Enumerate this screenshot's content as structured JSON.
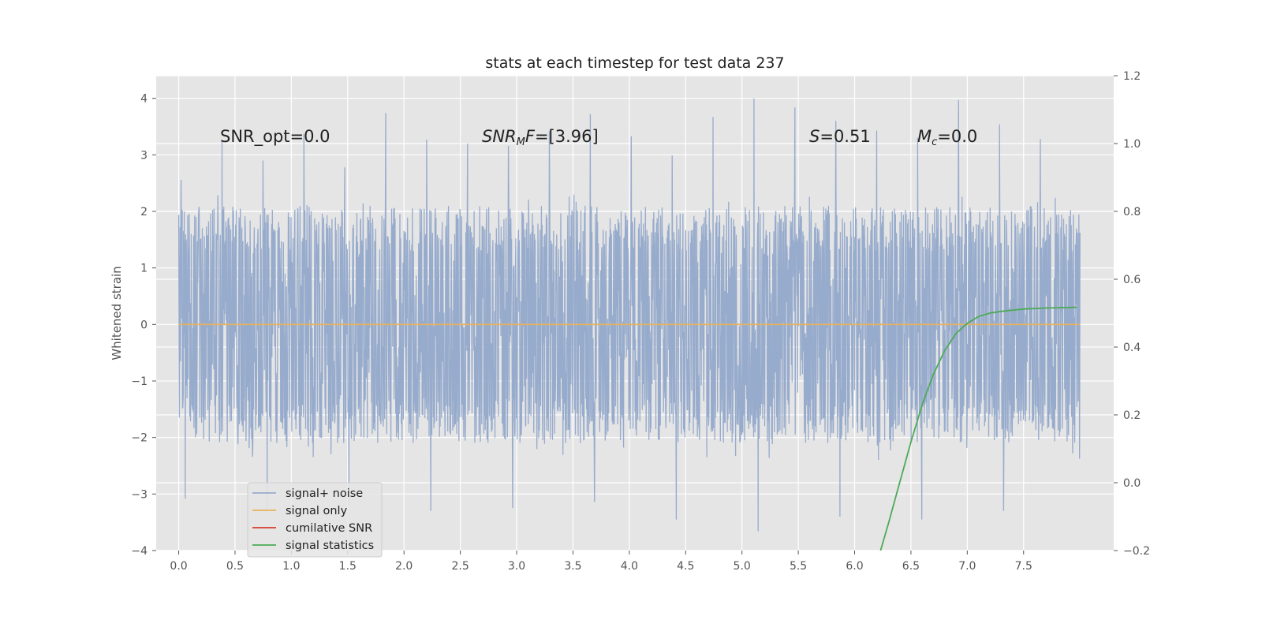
{
  "chart_data": {
    "type": "line",
    "title": "stats at each timestep for test data 237",
    "xlabel": "",
    "ylabel": "Whitened strain",
    "xlim": [
      -0.2,
      8.3
    ],
    "ylim": [
      -4,
      4.4
    ],
    "y2lim": [
      -0.2,
      1.2
    ],
    "grid": true,
    "legend_position": "lower-left",
    "x_ticks": [
      "0.0",
      "0.5",
      "1.0",
      "1.5",
      "2.0",
      "2.5",
      "3.0",
      "3.5",
      "4.0",
      "4.5",
      "5.0",
      "5.5",
      "6.0",
      "6.5",
      "7.0",
      "7.5"
    ],
    "y_ticks": [
      "−4",
      "−3",
      "−2",
      "−1",
      "0",
      "1",
      "2",
      "3",
      "4"
    ],
    "y2_ticks": [
      "−0.2",
      "0.0",
      "0.2",
      "0.4",
      "0.6",
      "0.8",
      "1.0",
      "1.2"
    ],
    "annotations": {
      "snr_opt": "SNR_opt=0.0",
      "snr_mf_main": "SNR",
      "snr_mf_sub": "M",
      "snr_mf_var": "F",
      "snr_mf_value": "=[3.96]",
      "s_var": "S",
      "s_value": "=0.51",
      "mc_var": "M",
      "mc_sub": "c",
      "mc_value": "=0.0"
    },
    "series": [
      {
        "name": "signal+ noise",
        "color": "#97abcc",
        "x_range": [
          0.0,
          8.0
        ],
        "envelope": {
          "positive_peaks": [
            2.56,
            3.24,
            2.9,
            3.37,
            2.78,
            3.74,
            3.27,
            3.2,
            3.16,
            3.42,
            3.72,
            3.33,
            2.99,
            3.67,
            4.0,
            3.84,
            3.6,
            3.43,
            3.3,
            3.97,
            3.54,
            3.28
          ],
          "typical_upper": 2.3,
          "typical_lower": -2.4,
          "negative_peaks": [
            -3.08,
            -3.27,
            -3.2,
            -3.3,
            -3.25,
            -3.14,
            -3.45,
            -3.66,
            -3.4,
            -3.45,
            -3.3
          ]
        }
      },
      {
        "name": "signal only",
        "color": "#e8b25c",
        "x": [
          0.0,
          8.0
        ],
        "y": [
          0.0,
          0.0
        ]
      },
      {
        "name": "cumilative SNR",
        "color": "#d93a2b",
        "x": [],
        "y": []
      },
      {
        "name": "signal statistics",
        "color": "#4daa57",
        "axis": "right",
        "x": [
          6.23,
          6.3,
          6.4,
          6.5,
          6.6,
          6.7,
          6.8,
          6.9,
          7.0,
          7.1,
          7.2,
          7.3,
          7.5,
          7.7,
          7.97
        ],
        "y": [
          -0.2,
          -0.12,
          0.0,
          0.12,
          0.23,
          0.32,
          0.39,
          0.44,
          0.47,
          0.49,
          0.5,
          0.505,
          0.512,
          0.515,
          0.517
        ]
      }
    ],
    "legend": [
      "signal+ noise",
      "signal only",
      "cumilative SNR",
      "signal statistics"
    ]
  }
}
